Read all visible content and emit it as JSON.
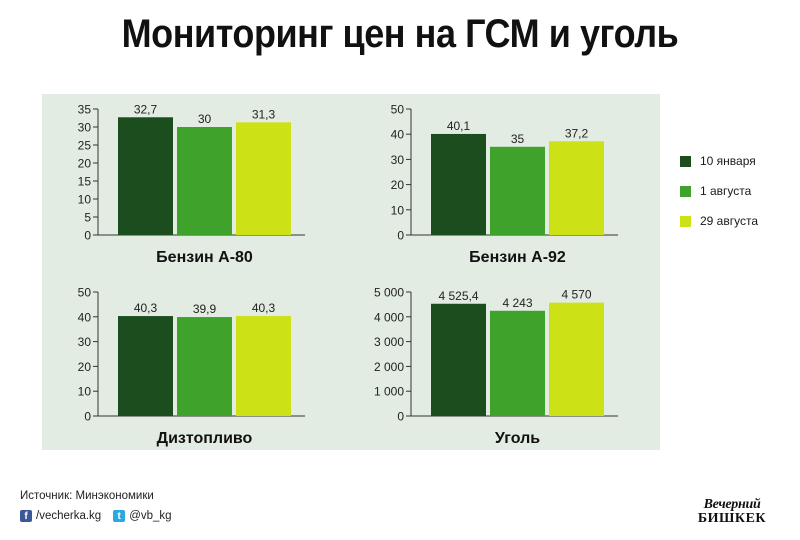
{
  "title": "Мониторинг цен на ГСМ и уголь",
  "legend": [
    {
      "label": "10 января",
      "color": "#1b4d1f"
    },
    {
      "label": "1 августа",
      "color": "#3fa32b"
    },
    {
      "label": "29 августа",
      "color": "#cde216"
    }
  ],
  "chart_data": [
    {
      "type": "bar",
      "title": "Бензин А-80",
      "categories": [
        "10 января",
        "1 августа",
        "29 августа"
      ],
      "values": [
        32.7,
        30,
        31.3
      ],
      "value_labels": [
        "32,7",
        "30",
        "31,3"
      ],
      "ylim": [
        0,
        35
      ],
      "yticks": [
        0,
        5,
        10,
        15,
        20,
        25,
        30,
        35
      ],
      "ytick_labels": [
        "0",
        "5",
        "10",
        "15",
        "20",
        "25",
        "30",
        "35"
      ]
    },
    {
      "type": "bar",
      "title": "Бензин А-92",
      "categories": [
        "10 января",
        "1 августа",
        "29 августа"
      ],
      "values": [
        40.1,
        35,
        37.2
      ],
      "value_labels": [
        "40,1",
        "35",
        "37,2"
      ],
      "ylim": [
        0,
        50
      ],
      "yticks": [
        0,
        10,
        20,
        30,
        40,
        50
      ],
      "ytick_labels": [
        "0",
        "10",
        "20",
        "30",
        "40",
        "50"
      ]
    },
    {
      "type": "bar",
      "title": "Дизтопливо",
      "categories": [
        "10 января",
        "1 августа",
        "29 августа"
      ],
      "values": [
        40.3,
        39.9,
        40.3
      ],
      "value_labels": [
        "40,3",
        "39,9",
        "40,3"
      ],
      "ylim": [
        0,
        50
      ],
      "yticks": [
        0,
        10,
        20,
        30,
        40,
        50
      ],
      "ytick_labels": [
        "0",
        "10",
        "20",
        "30",
        "40",
        "50"
      ]
    },
    {
      "type": "bar",
      "title": "Уголь",
      "categories": [
        "10 января",
        "1 августа",
        "29 августа"
      ],
      "values": [
        4525.4,
        4243,
        4570
      ],
      "value_labels": [
        "4 525,4",
        "4 243",
        "4 570"
      ],
      "ylim": [
        0,
        5000
      ],
      "yticks": [
        0,
        1000,
        2000,
        3000,
        4000,
        5000
      ],
      "ytick_labels": [
        "0",
        "1 000",
        "2 000",
        "3 000",
        "4 000",
        "5 000"
      ]
    }
  ],
  "footer": {
    "source": "Источник:  Минэкономики",
    "facebook": "/vecherka.kg",
    "twitter": "@vb_kg",
    "logo_line1": "Вечерний",
    "logo_line2": "БИШКЕК"
  },
  "icons": {
    "facebook": "facebook-icon",
    "twitter": "twitter-icon"
  }
}
